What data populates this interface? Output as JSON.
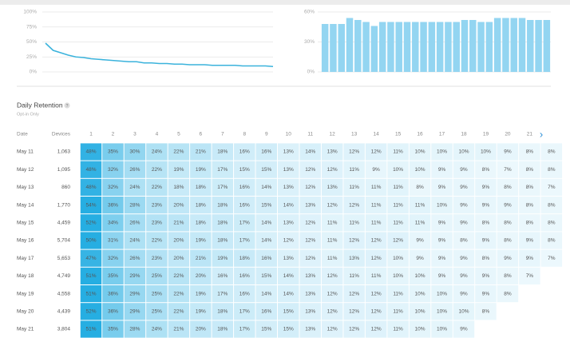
{
  "chart_data": [
    {
      "type": "line",
      "color": "#3bb3dc",
      "values": [
        48,
        36,
        32,
        28,
        25,
        24,
        22,
        21,
        20,
        19,
        18,
        17,
        17,
        15,
        15,
        14,
        14,
        13,
        13,
        12,
        12,
        12,
        11,
        11,
        11,
        11,
        10,
        10,
        10,
        10,
        9
      ],
      "ylim": [
        0,
        100
      ],
      "yticks": [
        {
          "value": 0,
          "label": "0%"
        },
        {
          "value": 25,
          "label": "25%"
        },
        {
          "value": 50,
          "label": "50%"
        },
        {
          "value": 75,
          "label": "75%"
        },
        {
          "value": 100,
          "label": "100%"
        }
      ],
      "grid": true
    },
    {
      "type": "bar",
      "color": "#93d5f1",
      "values": [
        48,
        48,
        48,
        54,
        52,
        50,
        46,
        50,
        50,
        50,
        50,
        50,
        50,
        50,
        50,
        50,
        50,
        52,
        52,
        50,
        50,
        54,
        54,
        54,
        54,
        52,
        52,
        52
      ],
      "ylim": [
        0,
        60
      ],
      "yticks": [
        {
          "value": 0,
          "label": "0%"
        },
        {
          "value": 30,
          "label": "30%"
        },
        {
          "value": 60,
          "label": "60%"
        }
      ],
      "grid": true
    }
  ],
  "retention": {
    "title": "Daily Retention",
    "help": "?",
    "subtitle": "Opt-in Only",
    "next": "›",
    "table": {
      "header": [
        "Date",
        "Devices",
        "1",
        "2",
        "3",
        "4",
        "5",
        "6",
        "7",
        "8",
        "9",
        "10",
        "11",
        "12",
        "13",
        "14",
        "15",
        "16",
        "17",
        "18",
        "19",
        "20",
        "21"
      ],
      "rows": [
        [
          "May 11",
          "1,063",
          "48%",
          "35%",
          "30%",
          "24%",
          "22%",
          "21%",
          "18%",
          "16%",
          "16%",
          "13%",
          "14%",
          "13%",
          "12%",
          "12%",
          "11%",
          "10%",
          "10%",
          "10%",
          "10%",
          "9%",
          "8%",
          "8%"
        ],
        [
          "May 12",
          "1,095",
          "48%",
          "32%",
          "26%",
          "22%",
          "19%",
          "19%",
          "17%",
          "15%",
          "15%",
          "13%",
          "12%",
          "12%",
          "11%",
          "9%",
          "10%",
          "10%",
          "9%",
          "9%",
          "8%",
          "7%",
          "8%",
          "8%"
        ],
        [
          "May 13",
          "860",
          "48%",
          "32%",
          "24%",
          "22%",
          "18%",
          "18%",
          "17%",
          "16%",
          "14%",
          "13%",
          "12%",
          "13%",
          "11%",
          "11%",
          "11%",
          "8%",
          "9%",
          "9%",
          "9%",
          "8%",
          "8%",
          "7%"
        ],
        [
          "May 14",
          "1,770",
          "54%",
          "36%",
          "28%",
          "23%",
          "20%",
          "18%",
          "18%",
          "16%",
          "15%",
          "14%",
          "13%",
          "12%",
          "12%",
          "11%",
          "11%",
          "11%",
          "10%",
          "9%",
          "9%",
          "9%",
          "8%",
          "8%"
        ],
        [
          "May 15",
          "4,459",
          "52%",
          "34%",
          "26%",
          "23%",
          "21%",
          "18%",
          "18%",
          "17%",
          "14%",
          "13%",
          "12%",
          "11%",
          "11%",
          "11%",
          "11%",
          "11%",
          "9%",
          "9%",
          "8%",
          "8%",
          "8%",
          "8%"
        ],
        [
          "May 16",
          "5,704",
          "50%",
          "31%",
          "24%",
          "22%",
          "20%",
          "19%",
          "18%",
          "17%",
          "14%",
          "12%",
          "12%",
          "11%",
          "12%",
          "12%",
          "12%",
          "9%",
          "9%",
          "8%",
          "9%",
          "8%",
          "9%",
          "8%"
        ],
        [
          "May 17",
          "5,653",
          "47%",
          "32%",
          "26%",
          "23%",
          "20%",
          "21%",
          "19%",
          "18%",
          "16%",
          "13%",
          "12%",
          "11%",
          "13%",
          "12%",
          "10%",
          "9%",
          "9%",
          "9%",
          "8%",
          "9%",
          "9%",
          "7%"
        ],
        [
          "May 18",
          "4,749",
          "51%",
          "35%",
          "29%",
          "25%",
          "22%",
          "20%",
          "16%",
          "16%",
          "15%",
          "14%",
          "13%",
          "12%",
          "11%",
          "11%",
          "10%",
          "10%",
          "9%",
          "9%",
          "9%",
          "8%",
          "7%"
        ],
        [
          "May 19",
          "4,558",
          "51%",
          "36%",
          "29%",
          "25%",
          "22%",
          "19%",
          "17%",
          "16%",
          "14%",
          "14%",
          "13%",
          "12%",
          "12%",
          "12%",
          "11%",
          "10%",
          "10%",
          "9%",
          "9%",
          "8%"
        ],
        [
          "May 20",
          "4,439",
          "52%",
          "36%",
          "29%",
          "25%",
          "22%",
          "19%",
          "18%",
          "17%",
          "16%",
          "15%",
          "13%",
          "12%",
          "12%",
          "12%",
          "11%",
          "10%",
          "10%",
          "10%",
          "8%"
        ],
        [
          "May 21",
          "3,804",
          "51%",
          "35%",
          "28%",
          "24%",
          "21%",
          "20%",
          "18%",
          "17%",
          "15%",
          "15%",
          "13%",
          "12%",
          "12%",
          "12%",
          "11%",
          "10%",
          "10%",
          "9%"
        ]
      ]
    }
  }
}
